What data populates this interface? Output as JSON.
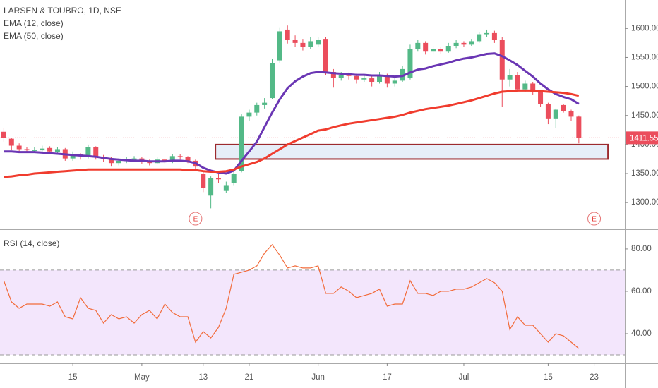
{
  "chart_data": [
    {
      "type": "candlestick",
      "title": "LARSEN & TOUBRO, 1D, NSE",
      "up_color": "#53b987",
      "down_color": "#eb4d5c",
      "open": [
        1422,
        1410,
        1398,
        1392,
        1389,
        1390,
        1394,
        1387,
        1392,
        1376,
        1383,
        1380,
        1395,
        1378,
        1375,
        1368,
        1372,
        1373,
        1376,
        1372,
        1368,
        1374,
        1370,
        1380,
        1378,
        1372,
        1350,
        1312,
        1342,
        1320,
        1334,
        1354,
        1448,
        1455,
        1468,
        1480,
        1545,
        1598,
        1580,
        1575,
        1568,
        1572,
        1582,
        1525,
        1515,
        1520,
        1518,
        1512,
        1514,
        1508,
        1520,
        1505,
        1510,
        1515,
        1565,
        1575,
        1560,
        1565,
        1560,
        1570,
        1575,
        1572,
        1578,
        1590,
        1592,
        1580,
        1512,
        1520,
        1495,
        1505,
        1490,
        1470,
        1445,
        1468,
        1458,
        1448
      ],
      "high": [
        1428,
        1412,
        1402,
        1396,
        1395,
        1398,
        1397,
        1396,
        1394,
        1388,
        1385,
        1400,
        1397,
        1382,
        1378,
        1376,
        1378,
        1380,
        1379,
        1374,
        1378,
        1376,
        1384,
        1384,
        1380,
        1374,
        1356,
        1345,
        1350,
        1336,
        1356,
        1452,
        1460,
        1472,
        1480,
        1548,
        1602,
        1605,
        1588,
        1582,
        1585,
        1585,
        1585,
        1530,
        1525,
        1524,
        1522,
        1520,
        1518,
        1525,
        1522,
        1515,
        1535,
        1572,
        1580,
        1578,
        1570,
        1568,
        1575,
        1580,
        1578,
        1582,
        1594,
        1598,
        1596,
        1585,
        1530,
        1525,
        1510,
        1508,
        1492,
        1472,
        1462,
        1470,
        1460,
        1450
      ],
      "low": [
        1405,
        1390,
        1388,
        1386,
        1386,
        1388,
        1384,
        1385,
        1372,
        1372,
        1374,
        1376,
        1374,
        1370,
        1362,
        1364,
        1368,
        1370,
        1366,
        1364,
        1366,
        1366,
        1368,
        1374,
        1368,
        1358,
        1318,
        1290,
        1334,
        1316,
        1330,
        1352,
        1440,
        1450,
        1462,
        1478,
        1540,
        1574,
        1568,
        1562,
        1565,
        1568,
        1520,
        1498,
        1510,
        1512,
        1505,
        1508,
        1500,
        1505,
        1498,
        1500,
        1508,
        1512,
        1560,
        1555,
        1555,
        1556,
        1558,
        1566,
        1568,
        1570,
        1575,
        1585,
        1575,
        1465,
        1500,
        1490,
        1490,
        1485,
        1465,
        1435,
        1428,
        1455,
        1440,
        1402
      ],
      "close": [
        1412,
        1398,
        1392,
        1390,
        1391,
        1393,
        1388,
        1392,
        1376,
        1382,
        1380,
        1395,
        1378,
        1375,
        1368,
        1372,
        1373,
        1376,
        1372,
        1368,
        1374,
        1370,
        1380,
        1378,
        1372,
        1362,
        1325,
        1342,
        1340,
        1330,
        1350,
        1448,
        1455,
        1468,
        1472,
        1540,
        1595,
        1580,
        1575,
        1568,
        1578,
        1580,
        1525,
        1515,
        1520,
        1518,
        1512,
        1514,
        1508,
        1520,
        1505,
        1510,
        1530,
        1565,
        1575,
        1560,
        1565,
        1560,
        1570,
        1575,
        1572,
        1578,
        1590,
        1592,
        1580,
        1512,
        1520,
        1495,
        1505,
        1490,
        1470,
        1445,
        1460,
        1458,
        1448,
        1412
      ],
      "series": [
        {
          "name": "EMA (12, close)",
          "color": "#6a36b4",
          "values": [
            1388,
            1388,
            1387,
            1387,
            1387,
            1386,
            1385,
            1384,
            1383,
            1382,
            1381,
            1380,
            1379,
            1377,
            1375,
            1374,
            1373,
            1372,
            1372,
            1371,
            1371,
            1371,
            1372,
            1372,
            1371,
            1368,
            1360,
            1355,
            1352,
            1350,
            1355,
            1372,
            1388,
            1405,
            1430,
            1455,
            1478,
            1497,
            1509,
            1517,
            1523,
            1525,
            1524,
            1523,
            1522,
            1521,
            1520,
            1520,
            1519,
            1519,
            1518,
            1517,
            1518,
            1524,
            1529,
            1531,
            1535,
            1538,
            1541,
            1545,
            1548,
            1550,
            1553,
            1556,
            1557,
            1552,
            1545,
            1537,
            1527,
            1517,
            1505,
            1495,
            1487,
            1482,
            1478,
            1470
          ]
        },
        {
          "name": "EMA (50, close)",
          "color": "#f03c2e",
          "values": [
            1344,
            1345,
            1347,
            1348,
            1350,
            1351,
            1352,
            1353,
            1354,
            1355,
            1356,
            1357,
            1357,
            1357,
            1357,
            1357,
            1357,
            1357,
            1357,
            1357,
            1357,
            1357,
            1357,
            1357,
            1356,
            1356,
            1354,
            1353,
            1353,
            1354,
            1357,
            1362,
            1366,
            1370,
            1376,
            1384,
            1392,
            1400,
            1406,
            1412,
            1418,
            1424,
            1426,
            1430,
            1433,
            1436,
            1438,
            1440,
            1442,
            1444,
            1446,
            1448,
            1451,
            1455,
            1458,
            1461,
            1463,
            1465,
            1467,
            1470,
            1473,
            1476,
            1480,
            1484,
            1488,
            1491,
            1492,
            1493,
            1493,
            1493,
            1492,
            1491,
            1490,
            1489,
            1487,
            1484
          ]
        }
      ],
      "xlim": [
        -0.5,
        81
      ],
      "ylim": [
        1254,
        1649
      ],
      "yticks": [
        {
          "value": 1300,
          "label": "1300.00"
        },
        {
          "value": 1350,
          "label": "1350.00"
        },
        {
          "value": 1400,
          "label": "1400.00"
        },
        {
          "value": 1450,
          "label": "1450.00"
        },
        {
          "value": 1500,
          "label": "1500.00"
        },
        {
          "value": 1550,
          "label": "1550.00"
        },
        {
          "value": 1600,
          "label": "1600.00"
        }
      ],
      "last_price": 1411.55,
      "last_price_color": "#eb4d5c",
      "zone": {
        "from": 27.6,
        "to": 78.8,
        "top": 1400,
        "bottom": 1375,
        "color": "#9c2a2e",
        "fill": "#e6eef8"
      },
      "events": [
        {
          "x": 25,
          "label": "E"
        },
        {
          "x": 77,
          "label": "E"
        }
      ]
    },
    {
      "type": "line",
      "title": "RSI (14, close)",
      "series": [
        {
          "color": "#f26b3a",
          "values": [
            65,
            55,
            52,
            54,
            54,
            54,
            53,
            55,
            48,
            47,
            57,
            52,
            51,
            45,
            49,
            47,
            48,
            45,
            49,
            51,
            47,
            54,
            50,
            48,
            48,
            36,
            41,
            38,
            43,
            52,
            68,
            69,
            70,
            72,
            78,
            82,
            77,
            71,
            72,
            71,
            71,
            72,
            59,
            59,
            62,
            60,
            57,
            58,
            59,
            61,
            53,
            54,
            54,
            65,
            59,
            59,
            58,
            60,
            60,
            61,
            61,
            62,
            64,
            66,
            64,
            60,
            42,
            48,
            44,
            44,
            40,
            36,
            40,
            39,
            36,
            33
          ]
        }
      ],
      "band": {
        "upper": 70,
        "lower": 30,
        "fill": "#f3e6fc"
      },
      "xlim": [
        -0.5,
        81
      ],
      "ylim": [
        26,
        89.3
      ],
      "yticks": [
        {
          "value": 40,
          "label": "40.00"
        },
        {
          "value": 60,
          "label": "60.00"
        },
        {
          "value": 80,
          "label": "80.00"
        }
      ],
      "xticks": [
        {
          "value": 9,
          "label": "15"
        },
        {
          "value": 18,
          "label": "May"
        },
        {
          "value": 26,
          "label": "13"
        },
        {
          "value": 32,
          "label": "21"
        },
        {
          "value": 41,
          "label": "Jun"
        },
        {
          "value": 50,
          "label": "17"
        },
        {
          "value": 60,
          "label": "Jul"
        },
        {
          "value": 71,
          "label": "15"
        },
        {
          "value": 77,
          "label": "23"
        }
      ]
    }
  ]
}
